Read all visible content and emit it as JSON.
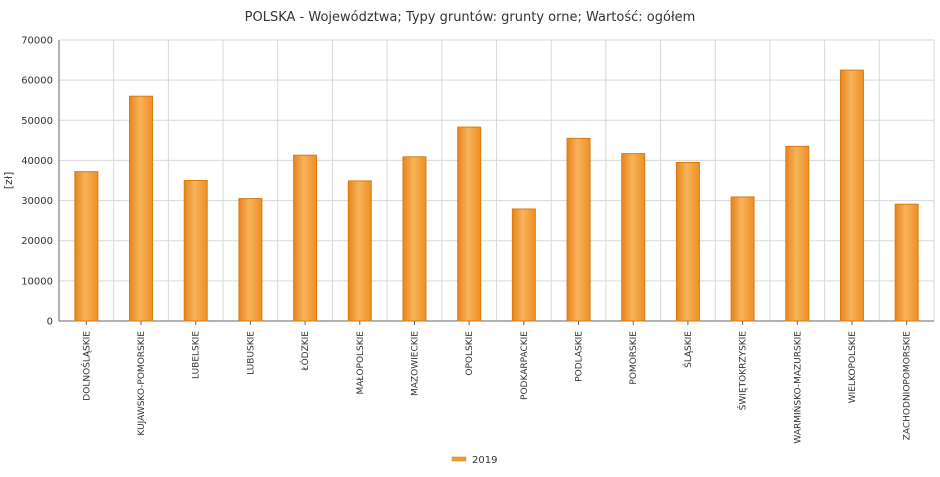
{
  "chart_data": {
    "type": "bar",
    "title": "POLSKA - Województwa; Typy gruntów: grunty orne; Wartość: ogółem",
    "xlabel": "",
    "ylabel": "[zł]",
    "ylim": [
      0,
      70000
    ],
    "yticks": [
      0,
      10000,
      20000,
      30000,
      40000,
      50000,
      60000,
      70000
    ],
    "grid": true,
    "legend_position": "bottom",
    "colors": {
      "bar": "#f39c33",
      "bar_stroke": "#d97b12",
      "grid": "#d9d9d9",
      "axis": "#666666"
    },
    "categories": [
      "DOLNOŚLĄSKIE",
      "KUJAWSKO-POMORSKIE",
      "LUBELSKIE",
      "LUBUSKIE",
      "ŁÓDZKIE",
      "MAŁOPOLSKIE",
      "MAZOWIECKIE",
      "OPOLSKIE",
      "PODKARPACKIE",
      "PODLASKIE",
      "POMORSKIE",
      "ŚLĄSKIE",
      "ŚWIĘTOKRZYSKIE",
      "WARMIŃSKO-MAZURSKIE",
      "WIELKOPOLSKIE",
      "ZACHODNIOPOMORSKIE"
    ],
    "series": [
      {
        "name": "2019",
        "values": [
          37200,
          56000,
          35000,
          30500,
          41300,
          34900,
          40900,
          48300,
          27900,
          45500,
          41700,
          39500,
          30900,
          43500,
          62500,
          29100
        ]
      }
    ]
  }
}
